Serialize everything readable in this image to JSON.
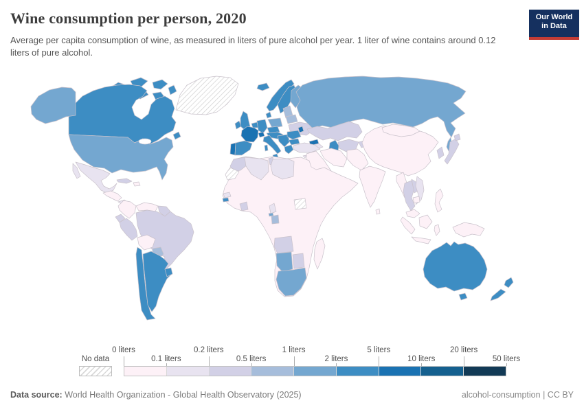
{
  "header": {
    "title": "Wine consumption per person, 2020",
    "subtitle": "Average per capita consumption of wine, as measured in liters of pure alcohol per year. 1 liter of wine contains around 0.12 liters of pure alcohol.",
    "logo": {
      "line1": "Our World",
      "line2": "in Data",
      "bg_color": "#15305f",
      "accent_color": "#c43c35"
    }
  },
  "legend": {
    "no_data_label": "No data",
    "tick_labels": [
      "0 liters",
      "0.1 liters",
      "0.2 liters",
      "0.5 liters",
      "1 liters",
      "2 liters",
      "5 liters",
      "10 liters",
      "20 liters",
      "50 liters"
    ],
    "bin_colors": [
      "#fdf1f7",
      "#e8e3f0",
      "#d2d0e6",
      "#a6bddb",
      "#74a7d0",
      "#3d8dc3",
      "#1a72b2",
      "#15608f",
      "#123a56"
    ],
    "no_data_stripe_color": "#d8d8d8"
  },
  "chart_data": {
    "type": "choropleth",
    "title": "Wine consumption per person, 2020",
    "unit": "liters of pure alcohol per year",
    "year": 2020,
    "bins": [
      "0-0.1",
      "0.1-0.2",
      "0.2-0.5",
      "0.5-1",
      "1-2",
      "2-5",
      "5-10",
      "10-20",
      "20-50"
    ],
    "legend_no_data": "No data",
    "region_bins": {
      "greenland": "no_data",
      "canada-arctic": 5,
      "canada": 5,
      "newfoundland": 5,
      "alaska": 4,
      "usa": 4,
      "mexico": 1,
      "cuba": 2,
      "hispaniola": 0,
      "central-america": 0,
      "panama": 1,
      "colombia": 0,
      "venezuela": 0,
      "guyanas": 2,
      "ecuador": 2,
      "peru": 2,
      "brazil": 2,
      "bolivia": 0,
      "paraguay": 3,
      "chile": 5,
      "argentina": 5,
      "uruguay": 5,
      "iceland": 5,
      "ireland": 5,
      "united-kingdom": 5,
      "portugal": 6,
      "spain": 5,
      "france": 6,
      "benelux": 5,
      "germany": 5,
      "denmark": 5,
      "norway": 5,
      "sweden": 5,
      "finland": 4,
      "baltics": 3,
      "poland": 4,
      "belarus": 3,
      "ukraine": 2,
      "czechia-slovakia": 5,
      "austria-hungary": 5,
      "switzerland": 6,
      "italy": 5,
      "balkans": 5,
      "romania": 5,
      "moldova": 6,
      "bulgaria": 5,
      "greece": 5,
      "russia": 4,
      "georgia": 6,
      "armenia-azerbaijan": 1,
      "turkey": 1,
      "cyprus": 1,
      "kazakhstan": 2,
      "caspian-sea": 5,
      "central-asia": 2,
      "arabia": 0,
      "iran": 0,
      "afghanistan-pakistan": 0,
      "india": 0,
      "sri-lanka": 0,
      "china": 0,
      "mongolia": 0,
      "korea": 2,
      "japan": 2,
      "myanmar": 0,
      "thailand": 2,
      "laos": 2,
      "vietnam": 1,
      "cambodia": 0,
      "malaysia": 0,
      "sumatra": 0,
      "borneo": 0,
      "java": 0,
      "sulawesi": 0,
      "philippines": 0,
      "new-guinea": 0,
      "australia": 5,
      "tasmania": 5,
      "new-zealand": 5,
      "africa-mainland": 0,
      "morocco": 2,
      "western-sahara": "no_data",
      "algeria": 1,
      "tunisia": 2,
      "libya": 1,
      "senegal": 1,
      "guinea-bissau": 5,
      "cote-divoire": 2,
      "cameroon": 1,
      "equatorial-guinea": 4,
      "gabon": 3,
      "angola": 2,
      "namibia": 4,
      "botswana": 2,
      "south-africa": 4,
      "south-sudan": "no_data",
      "madagascar": 0
    }
  },
  "footer": {
    "datasource_label": "Data source:",
    "datasource": "World Health Organization - Global Health Observatory (2025)",
    "slug": "alcohol-consumption",
    "separator": "|",
    "license": "CC BY"
  }
}
